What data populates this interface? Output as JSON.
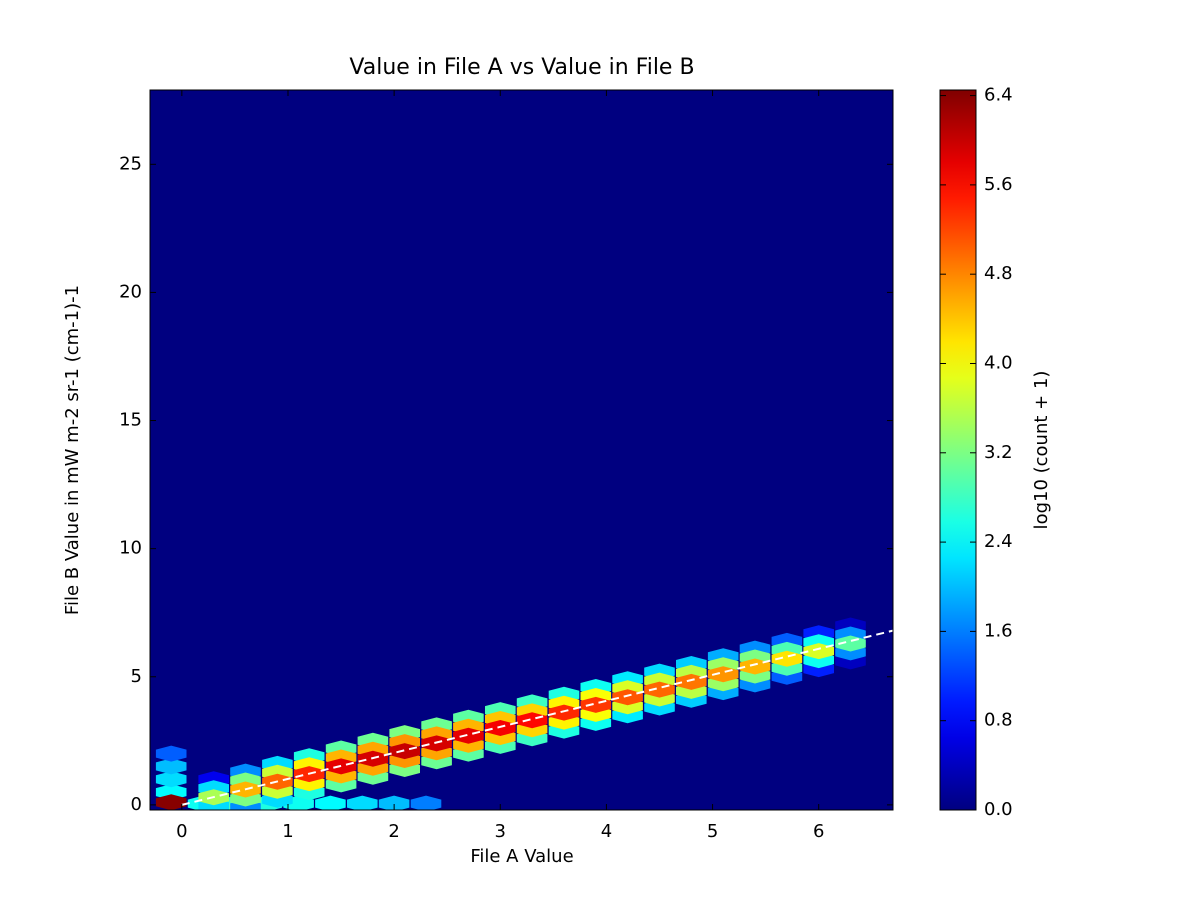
{
  "chart_data": {
    "type": "hexbin",
    "title": "Value in File A vs Value in File B",
    "x_label": "File A Value",
    "y_label": "File B Value in mW m-2 sr-1 (cm-1)-1",
    "colorbar_label": "log10 (count + 1)",
    "colormap": "jet",
    "xlim": [
      -0.3,
      6.7
    ],
    "ylim": [
      -0.2,
      27.9
    ],
    "xticks": [
      0,
      1,
      2,
      3,
      4,
      5,
      6
    ],
    "yticks": [
      0,
      5,
      10,
      15,
      20,
      25
    ],
    "clim": [
      0,
      6.45
    ],
    "cticks": [
      {
        "value": 0,
        "label": "0.0"
      },
      0.8,
      1.6,
      2.4,
      3.2,
      {
        "value": 4,
        "label": "4.0"
      },
      4.8,
      5.6,
      6.4
    ],
    "cells": [
      [
        -0.1,
        0.5,
        2.4
      ],
      [
        -0.1,
        1.0,
        2.2
      ],
      [
        -0.1,
        1.5,
        2.0
      ],
      [
        -0.1,
        2.0,
        1.4
      ],
      [
        0.2,
        0.05,
        2.5
      ],
      [
        0.5,
        0.05,
        2.8
      ],
      [
        0.8,
        0.05,
        2.6
      ],
      [
        1.1,
        0.05,
        2.5
      ],
      [
        1.4,
        0.05,
        2.4
      ],
      [
        1.7,
        0.05,
        2.2
      ],
      [
        2.0,
        0.05,
        2.0
      ],
      [
        2.3,
        0.05,
        1.6
      ],
      [
        0.3,
        -0.4,
        0.7
      ],
      [
        0.6,
        -0.1,
        1.7
      ],
      [
        0.9,
        0.2,
        2.2
      ],
      [
        1.2,
        0.5,
        2.6
      ],
      [
        1.5,
        0.8,
        3.0
      ],
      [
        1.8,
        1.1,
        3.1
      ],
      [
        2.1,
        1.4,
        3.2
      ],
      [
        2.4,
        1.7,
        3.1
      ],
      [
        2.7,
        2.0,
        3.0
      ],
      [
        3.0,
        2.3,
        2.9
      ],
      [
        3.3,
        2.6,
        2.8
      ],
      [
        3.6,
        2.9,
        2.6
      ],
      [
        3.9,
        3.2,
        2.5
      ],
      [
        4.2,
        3.5,
        2.3
      ],
      [
        4.5,
        3.8,
        2.2
      ],
      [
        4.8,
        4.1,
        2.1
      ],
      [
        5.1,
        4.4,
        1.9
      ],
      [
        5.4,
        4.7,
        1.7
      ],
      [
        5.7,
        5.0,
        1.4
      ],
      [
        6.0,
        5.3,
        1.0
      ],
      [
        6.3,
        5.6,
        0.4
      ],
      [
        0.3,
        1.0,
        0.7
      ],
      [
        0.6,
        1.3,
        1.7
      ],
      [
        0.9,
        1.6,
        2.2
      ],
      [
        1.2,
        1.9,
        2.6
      ],
      [
        1.5,
        2.2,
        3.0
      ],
      [
        1.8,
        2.5,
        3.1
      ],
      [
        2.1,
        2.8,
        3.2
      ],
      [
        2.4,
        3.1,
        3.1
      ],
      [
        2.7,
        3.4,
        3.0
      ],
      [
        3.0,
        3.7,
        2.9
      ],
      [
        3.3,
        4.0,
        2.8
      ],
      [
        3.6,
        4.3,
        2.6
      ],
      [
        3.9,
        4.6,
        2.5
      ],
      [
        4.2,
        4.9,
        2.3
      ],
      [
        4.5,
        5.2,
        2.2
      ],
      [
        4.8,
        5.5,
        2.1
      ],
      [
        5.1,
        5.8,
        1.9
      ],
      [
        5.4,
        6.1,
        1.7
      ],
      [
        5.7,
        6.4,
        1.4
      ],
      [
        6.0,
        6.7,
        1.0
      ],
      [
        6.3,
        7.0,
        0.4
      ],
      [
        0.3,
        -0.05,
        2.2
      ],
      [
        0.6,
        0.25,
        3.2
      ],
      [
        0.9,
        0.55,
        3.7
      ],
      [
        1.2,
        0.85,
        4.1
      ],
      [
        1.5,
        1.15,
        4.5
      ],
      [
        1.8,
        1.45,
        4.6
      ],
      [
        2.1,
        1.75,
        4.7
      ],
      [
        2.4,
        2.05,
        4.6
      ],
      [
        2.7,
        2.35,
        4.5
      ],
      [
        3.0,
        2.65,
        4.4
      ],
      [
        3.3,
        2.95,
        4.3
      ],
      [
        3.6,
        3.25,
        4.1
      ],
      [
        3.9,
        3.55,
        4.0
      ],
      [
        4.2,
        3.85,
        3.8
      ],
      [
        4.5,
        4.15,
        3.7
      ],
      [
        4.8,
        4.45,
        3.6
      ],
      [
        5.1,
        4.75,
        3.4
      ],
      [
        5.4,
        5.05,
        3.2
      ],
      [
        5.7,
        5.35,
        2.9
      ],
      [
        6.0,
        5.65,
        2.5
      ],
      [
        6.3,
        5.95,
        1.7
      ],
      [
        0.3,
        0.65,
        2.2
      ],
      [
        0.6,
        0.95,
        3.2
      ],
      [
        0.9,
        1.25,
        3.7
      ],
      [
        1.2,
        1.55,
        4.1
      ],
      [
        1.5,
        1.85,
        4.5
      ],
      [
        1.8,
        2.15,
        4.6
      ],
      [
        2.1,
        2.45,
        4.7
      ],
      [
        2.4,
        2.75,
        4.6
      ],
      [
        2.7,
        3.05,
        4.5
      ],
      [
        3.0,
        3.35,
        4.4
      ],
      [
        3.3,
        3.65,
        4.3
      ],
      [
        3.6,
        3.95,
        4.1
      ],
      [
        3.9,
        4.25,
        4.0
      ],
      [
        4.2,
        4.55,
        3.8
      ],
      [
        4.5,
        4.85,
        3.7
      ],
      [
        4.8,
        5.15,
        3.6
      ],
      [
        5.1,
        5.45,
        3.4
      ],
      [
        5.4,
        5.75,
        3.2
      ],
      [
        5.7,
        6.05,
        2.9
      ],
      [
        6.0,
        6.35,
        2.5
      ],
      [
        6.3,
        6.65,
        1.7
      ],
      [
        0.3,
        0.3,
        3.5
      ],
      [
        0.6,
        0.6,
        4.5
      ],
      [
        0.9,
        0.9,
        5.0
      ],
      [
        1.2,
        1.2,
        5.4
      ],
      [
        1.5,
        1.5,
        5.8
      ],
      [
        1.8,
        1.8,
        5.9
      ],
      [
        2.1,
        2.1,
        6.0
      ],
      [
        2.4,
        2.4,
        5.9
      ],
      [
        2.7,
        2.7,
        5.8
      ],
      [
        3.0,
        3.0,
        5.7
      ],
      [
        3.3,
        3.3,
        5.6
      ],
      [
        3.6,
        3.6,
        5.4
      ],
      [
        3.9,
        3.9,
        5.3
      ],
      [
        4.2,
        4.2,
        5.1
      ],
      [
        4.5,
        4.5,
        5.0
      ],
      [
        4.8,
        4.8,
        4.9
      ],
      [
        5.1,
        5.1,
        4.7
      ],
      [
        5.4,
        5.4,
        4.5
      ],
      [
        5.7,
        5.7,
        4.2
      ],
      [
        6.0,
        6.0,
        3.8
      ],
      [
        6.3,
        6.3,
        3.0
      ],
      [
        -0.1,
        0.1,
        6.4
      ]
    ],
    "fit_line": {
      "x": [
        0,
        6.7
      ],
      "y": [
        0,
        6.8
      ]
    }
  }
}
